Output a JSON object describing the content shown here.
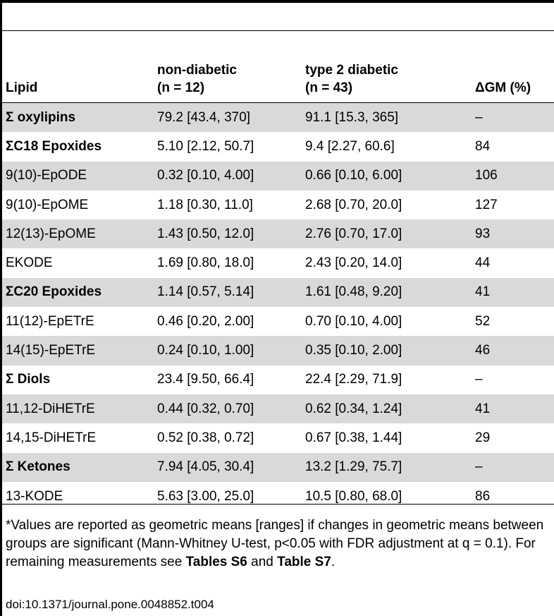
{
  "table": {
    "headers": [
      {
        "line1": "",
        "line2": "Lipid"
      },
      {
        "line1": "non-diabetic",
        "line2": "(n = 12)"
      },
      {
        "line1": "type 2 diabetic",
        "line2": "(n = 43)"
      },
      {
        "line1": "",
        "line2": "ΔGM (%)"
      }
    ],
    "rows": [
      {
        "lipid": "Σ oxylipins",
        "nd": "79.2 [43.4, 370]",
        "t2d": "91.1 [15.3, 365]",
        "dgm": "–",
        "bold": true,
        "shade": true
      },
      {
        "lipid": "ΣC18 Epoxides",
        "nd": "5.10 [2.12, 50.7]",
        "t2d": "9.4 [2.27, 60.6]",
        "dgm": "84",
        "bold": true,
        "shade": false
      },
      {
        "lipid": "9(10)-EpODE",
        "nd": "0.32 [0.10, 4.00]",
        "t2d": "0.66 [0.10, 6.00]",
        "dgm": "106",
        "bold": false,
        "shade": true
      },
      {
        "lipid": "9(10)-EpOME",
        "nd": "1.18 [0.30, 11.0]",
        "t2d": "2.68 [0.70, 20.0]",
        "dgm": "127",
        "bold": false,
        "shade": false
      },
      {
        "lipid": "12(13)-EpOME",
        "nd": "1.43 [0.50, 12.0]",
        "t2d": "2.76 [0.70, 17.0]",
        "dgm": "93",
        "bold": false,
        "shade": true
      },
      {
        "lipid": "EKODE",
        "nd": "1.69 [0.80, 18.0]",
        "t2d": "2.43 [0.20, 14.0]",
        "dgm": "44",
        "bold": false,
        "shade": false
      },
      {
        "lipid": "ΣC20 Epoxides",
        "nd": "1.14 [0.57, 5.14]",
        "t2d": "1.61 [0.48, 9.20]",
        "dgm": "41",
        "bold": true,
        "shade": true
      },
      {
        "lipid": "11(12)-EpETrE",
        "nd": "0.46 [0.20, 2.00]",
        "t2d": "0.70 [0.10, 4.00]",
        "dgm": "52",
        "bold": false,
        "shade": false
      },
      {
        "lipid": "14(15)-EpETrE",
        "nd": "0.24 [0.10, 1.00]",
        "t2d": "0.35 [0.10, 2.00]",
        "dgm": "46",
        "bold": false,
        "shade": true
      },
      {
        "lipid": "Σ Diols",
        "nd": "23.4 [9.50, 66.4]",
        "t2d": "22.4 [2.29, 71.9]",
        "dgm": "–",
        "bold": true,
        "shade": false
      },
      {
        "lipid": "11,12-DiHETrE",
        "nd": "0.44 [0.32, 0.70]",
        "t2d": "0.62 [0.34, 1.24]",
        "dgm": "41",
        "bold": false,
        "shade": true
      },
      {
        "lipid": "14,15-DiHETrE",
        "nd": "0.52 [0.38, 0.72]",
        "t2d": "0.67 [0.38, 1.44]",
        "dgm": "29",
        "bold": false,
        "shade": false
      },
      {
        "lipid": "Σ Ketones",
        "nd": "7.94 [4.05, 30.4]",
        "t2d": "13.2 [1.29, 75.7]",
        "dgm": "–",
        "bold": true,
        "shade": true
      },
      {
        "lipid": "13-KODE",
        "nd": "5.63 [3.00, 25.0]",
        "t2d": "10.5 [0.80, 68.0]",
        "dgm": "86",
        "bold": false,
        "shade": false
      }
    ]
  },
  "footnote": {
    "part1": "*Values are reported as geometric means [ranges] if changes in geometric means between groups are significant (Mann-Whitney U-test, p<0.05 with FDR adjustment at q = 0.1). For remaining measurements see ",
    "ref1": "Tables S6",
    "part2": " and ",
    "ref2": "Table S7",
    "part3": "."
  },
  "doi": "doi:10.1371/journal.pone.0048852.t004"
}
